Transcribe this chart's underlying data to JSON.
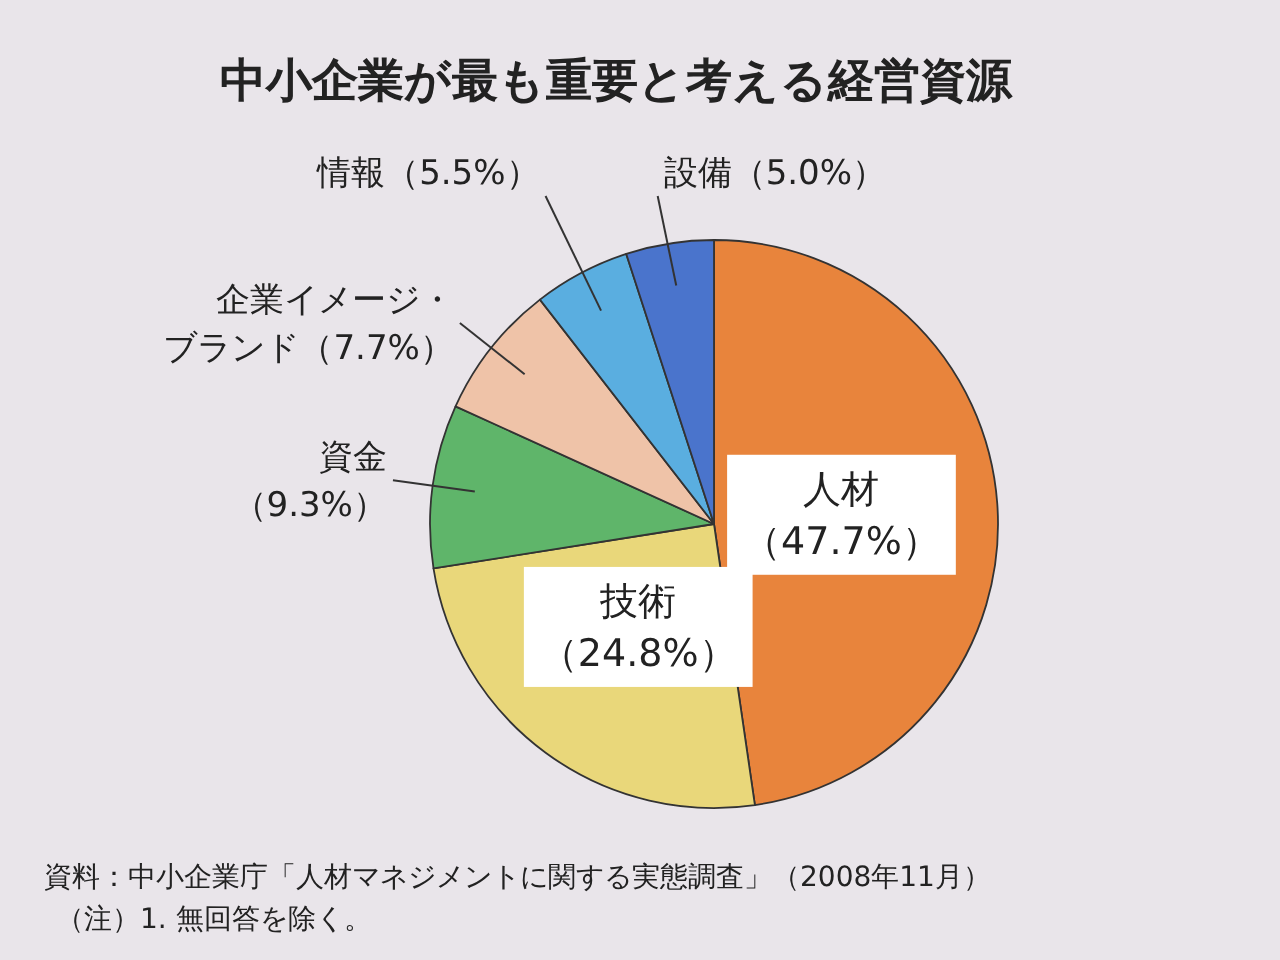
{
  "chart_data": {
    "type": "pie",
    "title": "中小企業が最も重要と考える経営資源",
    "categories": [
      "人材",
      "技術",
      "資金",
      "企業イメージ・ブランド",
      "情報",
      "設備"
    ],
    "values": [
      47.7,
      24.8,
      9.3,
      7.7,
      5.5,
      5.0
    ],
    "value_labels": [
      "（47.7%）",
      "（24.8%）",
      "（9.3%）",
      "（7.7%）",
      "（5.5%）",
      "（5.0%）"
    ],
    "colors": [
      "#e8843c",
      "#e9d77a",
      "#5fb56a",
      "#efc3a8",
      "#5aaee0",
      "#4a74cc"
    ],
    "annotations": [
      "資料：中小企業庁「人材マネジメントに関する実態調査」（2008年11月）",
      "（注）1. 無回答を除く。"
    ]
  }
}
